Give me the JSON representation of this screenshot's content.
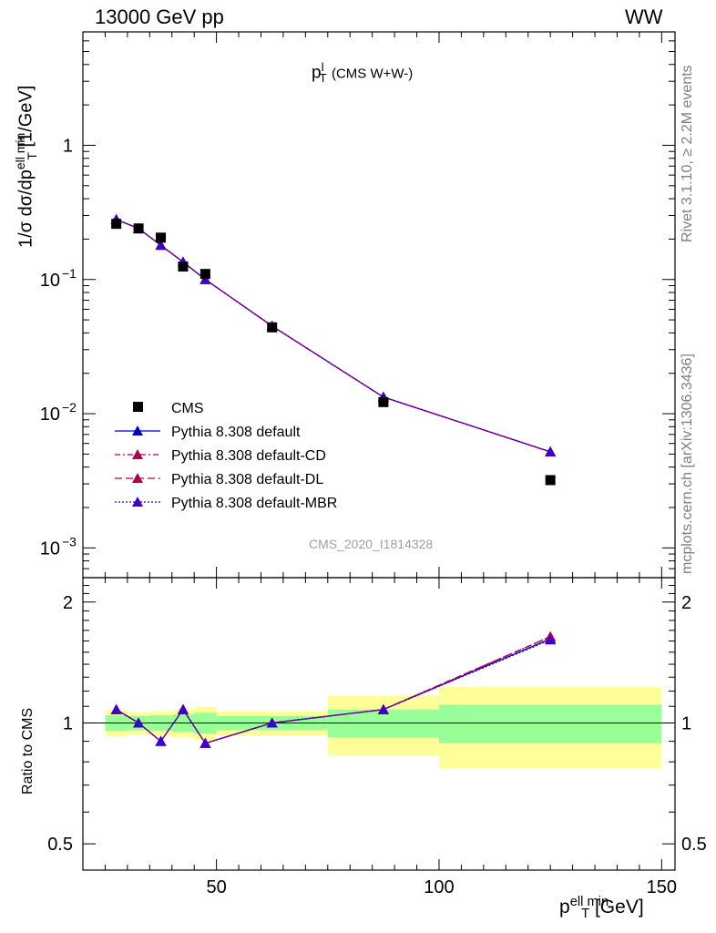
{
  "header": {
    "left": "13000 GeV pp",
    "right": "WW"
  },
  "side_text": {
    "rivet": "Rivet 3.1.10, ≥ 2.2M events",
    "mcplots": "mcplots.cern.ch [arXiv:1306.3436]"
  },
  "watermark": "CMS_2020_I1814328",
  "chart_data": {
    "type": "line",
    "title_main": "p",
    "title_sup": "l",
    "title_sub": "T",
    "title_rest": "(CMS W+W-)",
    "ylabel_main": "1/σ dσ/dp",
    "ylabel_sup": "ell min",
    "ylabel_sub": "T",
    "ylabel_unit": "[1/GeV]",
    "xlabel_main": "p",
    "xlabel_sup": "ell min",
    "xlabel_sub": "T",
    "xlabel_unit": "[GeV]",
    "ratio_ylabel": "Ratio to CMS",
    "xlim": [
      20,
      153
    ],
    "ylim": [
      0.0006,
      7
    ],
    "yscale": "log",
    "ratio_ylim": [
      0.43,
      2.3
    ],
    "x_ticks": [
      "50",
      "100",
      "150"
    ],
    "y_ticks": [
      {
        "mant": "1",
        "exp": ""
      },
      {
        "mant": "10",
        "exp": "−1"
      },
      {
        "mant": "10",
        "exp": "−2"
      },
      {
        "mant": "10",
        "exp": "−3"
      }
    ],
    "ratio_ticks": [
      "2",
      "1",
      "0.5"
    ],
    "bin_edges": [
      25,
      30,
      35,
      40,
      45,
      50,
      75,
      100,
      150
    ],
    "data": {
      "name": "CMS",
      "x": [
        27.5,
        32.5,
        37.5,
        42.5,
        47.5,
        62.5,
        87.5,
        125
      ],
      "y": [
        0.26,
        0.24,
        0.205,
        0.125,
        0.11,
        0.044,
        0.0122,
        0.0032
      ]
    },
    "band_inner": [
      0.045,
      0.04,
      0.045,
      0.05,
      0.06,
      0.04,
      0.08,
      0.11
    ],
    "band_outer": [
      0.075,
      0.065,
      0.07,
      0.08,
      0.095,
      0.07,
      0.17,
      0.23
    ],
    "series": [
      {
        "name": "Pythia 8.308 default",
        "color": "#0000cc",
        "dash": "",
        "y": [
          0.28,
          0.24,
          0.18,
          0.135,
          0.1,
          0.045,
          0.0133,
          0.0052
        ],
        "ratio": [
          1.08,
          1.0,
          0.9,
          1.08,
          0.89,
          1.0,
          1.08,
          1.62
        ]
      },
      {
        "name": "Pythia 8.308 default-CD",
        "color": "#b2004c",
        "dash": "6,3,2,3",
        "y": [
          0.28,
          0.24,
          0.18,
          0.135,
          0.1,
          0.045,
          0.0133,
          0.0052
        ],
        "ratio": [
          1.08,
          1.0,
          0.9,
          1.08,
          0.89,
          1.0,
          1.08,
          1.64
        ]
      },
      {
        "name": "Pythia 8.308 default-DL",
        "color": "#b2004c",
        "dash": "8,4",
        "y": [
          0.28,
          0.24,
          0.18,
          0.135,
          0.1,
          0.045,
          0.0133,
          0.0052
        ],
        "ratio": [
          1.08,
          1.0,
          0.9,
          1.08,
          0.89,
          1.0,
          1.08,
          1.64
        ]
      },
      {
        "name": "Pythia 8.308 default-MBR",
        "color": "#3a00cc",
        "dash": "2,2",
        "y": [
          0.28,
          0.24,
          0.18,
          0.135,
          0.1,
          0.045,
          0.0133,
          0.0052
        ],
        "ratio": [
          1.08,
          1.0,
          0.9,
          1.08,
          0.89,
          1.0,
          1.08,
          1.61
        ]
      }
    ],
    "colors": {
      "band_inner": "#99ff99",
      "band_outer": "#ffff99"
    },
    "legend_position": "lower-left"
  }
}
